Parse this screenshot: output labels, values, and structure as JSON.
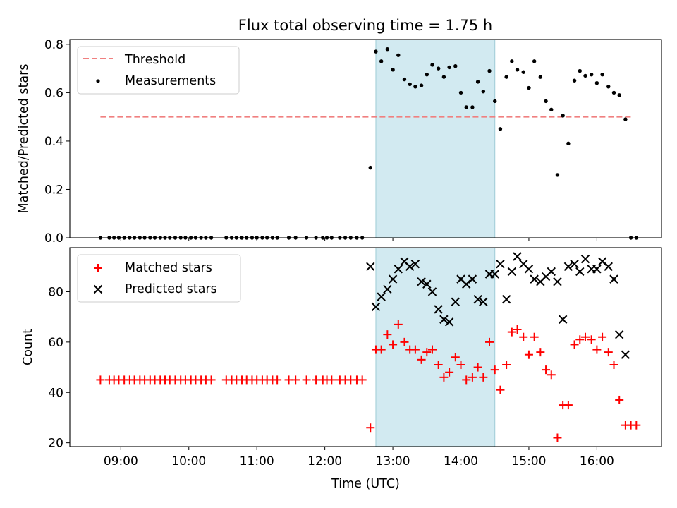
{
  "chart_data": {
    "type": "scatter",
    "title": "Flux total observing time = 1.75 h",
    "xlabel": "Time (UTC)",
    "xticks": [
      "09:00",
      "10:00",
      "11:00",
      "12:00",
      "13:00",
      "14:00",
      "15:00",
      "16:00"
    ],
    "xlim_hours": [
      8.25,
      16.95
    ],
    "shaded_span_hours": [
      12.75,
      14.5
    ],
    "colors": {
      "threshold": "#f08080",
      "measurement": "#000000",
      "matched": "#ff0000",
      "predicted": "#000000",
      "shade": "#add8e6"
    },
    "panels": [
      {
        "ylabel": "Matched/Predicted stars",
        "ylim": [
          0,
          0.82
        ],
        "yticks": [
          "0.0",
          "0.2",
          "0.4",
          "0.6",
          "0.8"
        ],
        "legend": {
          "position": "top-left",
          "items": [
            {
              "label": "Threshold",
              "marker": "dash"
            },
            {
              "label": "Measurements",
              "marker": "dot"
            }
          ]
        },
        "threshold": {
          "value": 0.5,
          "x_start": 8.7,
          "x_end": 16.5
        },
        "measurements": [
          [
            8.7,
            0
          ],
          [
            8.83,
            0
          ],
          [
            8.9,
            0
          ],
          [
            8.97,
            0
          ],
          [
            9.05,
            0
          ],
          [
            9.13,
            0
          ],
          [
            9.2,
            0
          ],
          [
            9.28,
            0
          ],
          [
            9.35,
            0
          ],
          [
            9.43,
            0
          ],
          [
            9.5,
            0
          ],
          [
            9.58,
            0
          ],
          [
            9.65,
            0
          ],
          [
            9.72,
            0
          ],
          [
            9.8,
            0
          ],
          [
            9.88,
            0
          ],
          [
            9.95,
            0
          ],
          [
            10.03,
            0
          ],
          [
            10.1,
            0
          ],
          [
            10.18,
            0
          ],
          [
            10.25,
            0
          ],
          [
            10.33,
            0
          ],
          [
            10.55,
            0
          ],
          [
            10.63,
            0
          ],
          [
            10.7,
            0
          ],
          [
            10.78,
            0
          ],
          [
            10.85,
            0
          ],
          [
            10.93,
            0
          ],
          [
            11.0,
            0
          ],
          [
            11.08,
            0
          ],
          [
            11.15,
            0
          ],
          [
            11.23,
            0
          ],
          [
            11.3,
            0
          ],
          [
            11.47,
            0
          ],
          [
            11.57,
            0
          ],
          [
            11.73,
            0
          ],
          [
            11.87,
            0
          ],
          [
            11.97,
            0
          ],
          [
            12.03,
            0
          ],
          [
            12.1,
            0
          ],
          [
            12.22,
            0
          ],
          [
            12.3,
            0
          ],
          [
            12.38,
            0
          ],
          [
            12.47,
            0
          ],
          [
            12.55,
            0
          ],
          [
            12.67,
            0.29
          ],
          [
            12.75,
            0.77
          ],
          [
            12.83,
            0.73
          ],
          [
            12.92,
            0.78
          ],
          [
            13.0,
            0.695
          ],
          [
            13.08,
            0.755
          ],
          [
            13.17,
            0.655
          ],
          [
            13.25,
            0.635
          ],
          [
            13.33,
            0.625
          ],
          [
            13.42,
            0.63
          ],
          [
            13.5,
            0.675
          ],
          [
            13.58,
            0.715
          ],
          [
            13.67,
            0.7
          ],
          [
            13.75,
            0.665
          ],
          [
            13.83,
            0.705
          ],
          [
            13.92,
            0.71
          ],
          [
            14.0,
            0.6
          ],
          [
            14.08,
            0.54
          ],
          [
            14.17,
            0.54
          ],
          [
            14.25,
            0.645
          ],
          [
            14.33,
            0.605
          ],
          [
            14.42,
            0.69
          ],
          [
            14.5,
            0.565
          ],
          [
            14.58,
            0.45
          ],
          [
            14.67,
            0.665
          ],
          [
            14.75,
            0.73
          ],
          [
            14.83,
            0.695
          ],
          [
            14.92,
            0.685
          ],
          [
            15.0,
            0.62
          ],
          [
            15.08,
            0.73
          ],
          [
            15.17,
            0.665
          ],
          [
            15.25,
            0.565
          ],
          [
            15.33,
            0.53
          ],
          [
            15.42,
            0.26
          ],
          [
            15.5,
            0.505
          ],
          [
            15.58,
            0.39
          ],
          [
            15.67,
            0.65
          ],
          [
            15.75,
            0.69
          ],
          [
            15.83,
            0.67
          ],
          [
            15.92,
            0.675
          ],
          [
            16.0,
            0.64
          ],
          [
            16.08,
            0.675
          ],
          [
            16.17,
            0.625
          ],
          [
            16.25,
            0.6
          ],
          [
            16.33,
            0.59
          ],
          [
            16.42,
            0.49
          ],
          [
            16.5,
            0
          ],
          [
            16.58,
            0
          ]
        ]
      },
      {
        "ylabel": "Count",
        "ylim": [
          18.5,
          97.5
        ],
        "yticks": [
          "20",
          "40",
          "60",
          "80"
        ],
        "legend": {
          "position": "top-left",
          "items": [
            {
              "label": "Matched stars",
              "marker": "plus"
            },
            {
              "label": "Predicted stars",
              "marker": "x"
            }
          ]
        },
        "matched_stars": [
          [
            8.7,
            45
          ],
          [
            8.83,
            45
          ],
          [
            8.9,
            45
          ],
          [
            8.97,
            45
          ],
          [
            9.05,
            45
          ],
          [
            9.13,
            45
          ],
          [
            9.2,
            45
          ],
          [
            9.28,
            45
          ],
          [
            9.35,
            45
          ],
          [
            9.43,
            45
          ],
          [
            9.5,
            45
          ],
          [
            9.58,
            45
          ],
          [
            9.65,
            45
          ],
          [
            9.72,
            45
          ],
          [
            9.8,
            45
          ],
          [
            9.88,
            45
          ],
          [
            9.95,
            45
          ],
          [
            10.03,
            45
          ],
          [
            10.1,
            45
          ],
          [
            10.18,
            45
          ],
          [
            10.25,
            45
          ],
          [
            10.33,
            45
          ],
          [
            10.55,
            45
          ],
          [
            10.63,
            45
          ],
          [
            10.7,
            45
          ],
          [
            10.78,
            45
          ],
          [
            10.85,
            45
          ],
          [
            10.93,
            45
          ],
          [
            11.0,
            45
          ],
          [
            11.08,
            45
          ],
          [
            11.15,
            45
          ],
          [
            11.23,
            45
          ],
          [
            11.3,
            45
          ],
          [
            11.47,
            45
          ],
          [
            11.57,
            45
          ],
          [
            11.73,
            45
          ],
          [
            11.87,
            45
          ],
          [
            11.97,
            45
          ],
          [
            12.03,
            45
          ],
          [
            12.1,
            45
          ],
          [
            12.22,
            45
          ],
          [
            12.3,
            45
          ],
          [
            12.38,
            45
          ],
          [
            12.47,
            45
          ],
          [
            12.55,
            45
          ],
          [
            12.67,
            26
          ],
          [
            12.75,
            57
          ],
          [
            12.83,
            57
          ],
          [
            12.92,
            63
          ],
          [
            13.0,
            59
          ],
          [
            13.08,
            67
          ],
          [
            13.17,
            60
          ],
          [
            13.25,
            57
          ],
          [
            13.33,
            57
          ],
          [
            13.42,
            53
          ],
          [
            13.5,
            56
          ],
          [
            13.58,
            57
          ],
          [
            13.67,
            51
          ],
          [
            13.75,
            46
          ],
          [
            13.83,
            48
          ],
          [
            13.92,
            54
          ],
          [
            14.0,
            51
          ],
          [
            14.08,
            45
          ],
          [
            14.17,
            46
          ],
          [
            14.25,
            50
          ],
          [
            14.33,
            46
          ],
          [
            14.42,
            60
          ],
          [
            14.5,
            49
          ],
          [
            14.58,
            41
          ],
          [
            14.67,
            51
          ],
          [
            14.75,
            64
          ],
          [
            14.83,
            65
          ],
          [
            14.92,
            62
          ],
          [
            15.0,
            55
          ],
          [
            15.08,
            62
          ],
          [
            15.17,
            56
          ],
          [
            15.25,
            49
          ],
          [
            15.33,
            47
          ],
          [
            15.42,
            22
          ],
          [
            15.5,
            35
          ],
          [
            15.58,
            35
          ],
          [
            15.67,
            59
          ],
          [
            15.75,
            61
          ],
          [
            15.83,
            62
          ],
          [
            15.92,
            61
          ],
          [
            16.0,
            57
          ],
          [
            16.08,
            62
          ],
          [
            16.17,
            56
          ],
          [
            16.25,
            51
          ],
          [
            16.33,
            37
          ],
          [
            16.42,
            27
          ],
          [
            16.5,
            27
          ],
          [
            16.58,
            27
          ]
        ],
        "predicted_stars": [
          [
            12.67,
            90
          ],
          [
            12.75,
            74
          ],
          [
            12.83,
            78
          ],
          [
            12.92,
            81
          ],
          [
            13.0,
            85
          ],
          [
            13.08,
            89
          ],
          [
            13.17,
            92
          ],
          [
            13.25,
            90
          ],
          [
            13.33,
            91
          ],
          [
            13.42,
            84
          ],
          [
            13.5,
            83
          ],
          [
            13.58,
            80
          ],
          [
            13.67,
            73
          ],
          [
            13.75,
            69
          ],
          [
            13.83,
            68
          ],
          [
            13.92,
            76
          ],
          [
            14.0,
            85
          ],
          [
            14.08,
            83
          ],
          [
            14.17,
            85
          ],
          [
            14.25,
            77
          ],
          [
            14.33,
            76
          ],
          [
            14.42,
            87
          ],
          [
            14.5,
            87
          ],
          [
            14.58,
            91
          ],
          [
            14.67,
            77
          ],
          [
            14.75,
            88
          ],
          [
            14.83,
            94
          ],
          [
            14.92,
            91
          ],
          [
            15.0,
            89
          ],
          [
            15.08,
            85
          ],
          [
            15.17,
            84
          ],
          [
            15.25,
            86
          ],
          [
            15.33,
            88
          ],
          [
            15.42,
            84
          ],
          [
            15.5,
            69
          ],
          [
            15.58,
            90
          ],
          [
            15.67,
            91
          ],
          [
            15.75,
            88
          ],
          [
            15.83,
            93
          ],
          [
            15.92,
            89
          ],
          [
            16.0,
            89
          ],
          [
            16.08,
            92
          ],
          [
            16.17,
            90
          ],
          [
            16.25,
            85
          ],
          [
            16.33,
            63
          ],
          [
            16.42,
            55
          ]
        ]
      }
    ]
  }
}
